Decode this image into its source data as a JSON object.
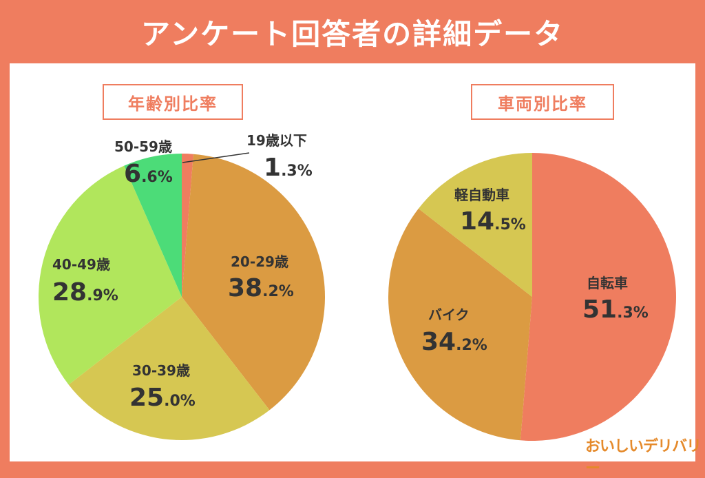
{
  "title": "アンケート回答者の詳細データ",
  "logo_text": "おいしいデリバリー",
  "chart_data": [
    {
      "type": "pie",
      "title": "年齢別比率",
      "slices": [
        {
          "label": "19歳以下",
          "value": 1.3,
          "int": "1",
          "dec": ".3%",
          "color": "#EF7D5F"
        },
        {
          "label": "20-29歳",
          "value": 38.2,
          "int": "38",
          "dec": ".2%",
          "color": "#DB9B42"
        },
        {
          "label": "30-39歳",
          "value": 25.0,
          "int": "25",
          "dec": ".0%",
          "color": "#D6C752"
        },
        {
          "label": "40-49歳",
          "value": 28.9,
          "int": "28",
          "dec": ".9%",
          "color": "#B1E65C"
        },
        {
          "label": "50-59歳",
          "value": 6.6,
          "int": "6",
          "dec": ".6%",
          "color": "#4CDC78"
        }
      ]
    },
    {
      "type": "pie",
      "title": "車両別比率",
      "slices": [
        {
          "label": "自転車",
          "value": 51.3,
          "int": "51",
          "dec": ".3%",
          "color": "#EF7D5F"
        },
        {
          "label": "バイク",
          "value": 34.2,
          "int": "34",
          "dec": ".2%",
          "color": "#DB9B42"
        },
        {
          "label": "軽自動車",
          "value": 14.5,
          "int": "14",
          "dec": ".5%",
          "color": "#D6C752"
        }
      ]
    }
  ]
}
